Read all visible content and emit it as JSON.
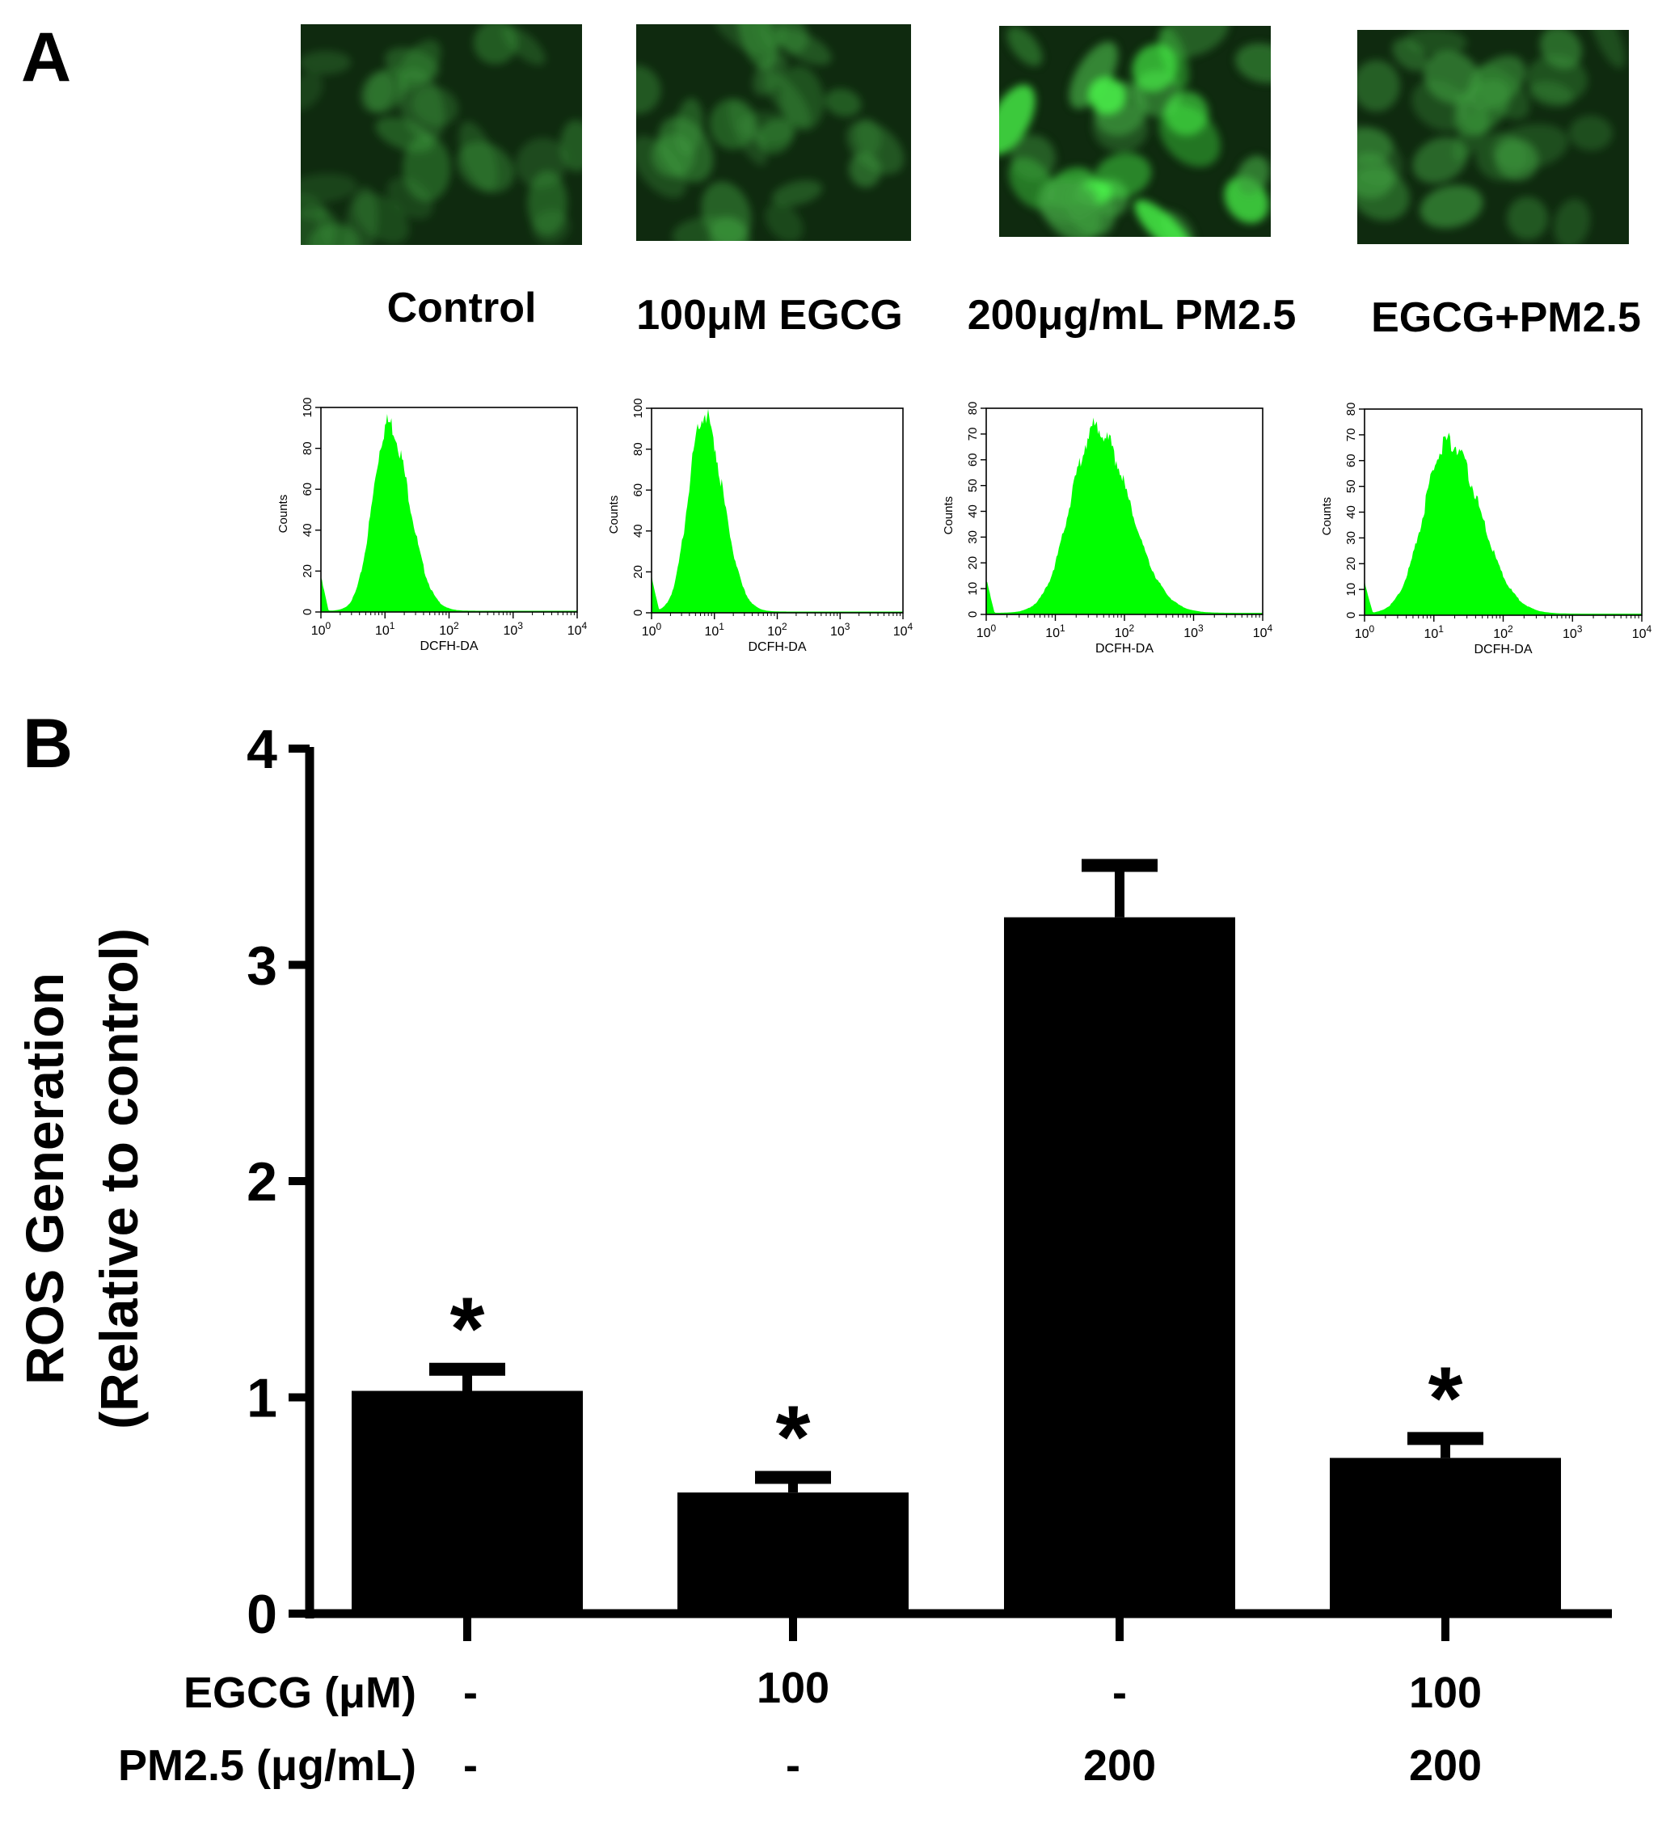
{
  "figure": {
    "panel_a_label": "A",
    "panel_b_label": "B"
  },
  "panel_a": {
    "groups": [
      {
        "label": "Control",
        "histogram": {
          "y_ticks": [
            "0",
            "20",
            "40",
            "60",
            "80",
            "100"
          ],
          "y_max": 100,
          "peak_count": 92,
          "peak_log10": 1.05,
          "spread": 0.28
        }
      },
      {
        "label": "100μM EGCG",
        "histogram": {
          "y_ticks": [
            "0",
            "20",
            "40",
            "60",
            "80",
            "100"
          ],
          "y_max": 100,
          "peak_count": 97,
          "peak_log10": 0.82,
          "spread": 0.27
        }
      },
      {
        "label": "200μg/mL PM2.5",
        "histogram": {
          "y_ticks": [
            "0",
            "10",
            "20",
            "30",
            "40",
            "50",
            "60",
            "70",
            "80"
          ],
          "y_max": 80,
          "peak_count": 72,
          "peak_log10": 1.58,
          "spread": 0.42
        }
      },
      {
        "label": "EGCG+PM2.5",
        "histogram": {
          "y_ticks": [
            "0",
            "10",
            "20",
            "30",
            "40",
            "50",
            "60",
            "70",
            "80"
          ],
          "y_max": 80,
          "peak_count": 67,
          "peak_log10": 1.2,
          "spread": 0.4
        }
      }
    ],
    "histogram_axes": {
      "ylabel": "Counts",
      "xlabel": "DCFH-DA",
      "x_ticks_exponent": [
        "0",
        "1",
        "2",
        "3",
        "4"
      ],
      "x_tick_base": "10"
    },
    "colors": {
      "histogram_fill": "#00ff00",
      "micrograph_base": "#0f2a0f",
      "micrograph_cell": "#3f9f3f",
      "micrograph_bright": "#4cff4c"
    }
  },
  "chart_data": {
    "type": "bar",
    "categories": [
      "Control",
      "EGCG",
      "PM2.5",
      "EGCG+PM2.5"
    ],
    "values": [
      1.03,
      0.56,
      3.22,
      0.72
    ],
    "errors": [
      0.1,
      0.07,
      0.24,
      0.09
    ],
    "significance": [
      "*",
      "*",
      "",
      "*"
    ],
    "ylabel_line1": "ROS Generation",
    "ylabel_line2": "(Relative to control)",
    "ylim": [
      0,
      4
    ],
    "y_ticks": [
      "0",
      "1",
      "2",
      "3",
      "4"
    ],
    "grid": false,
    "legend": false,
    "bar_color": "#000000",
    "treatment_rows": [
      {
        "label": "EGCG (μM)",
        "values": [
          "-",
          "100",
          "-",
          "100"
        ]
      },
      {
        "label": "PM2.5 (μg/mL)",
        "values": [
          "-",
          "-",
          "200",
          "200"
        ]
      }
    ]
  }
}
